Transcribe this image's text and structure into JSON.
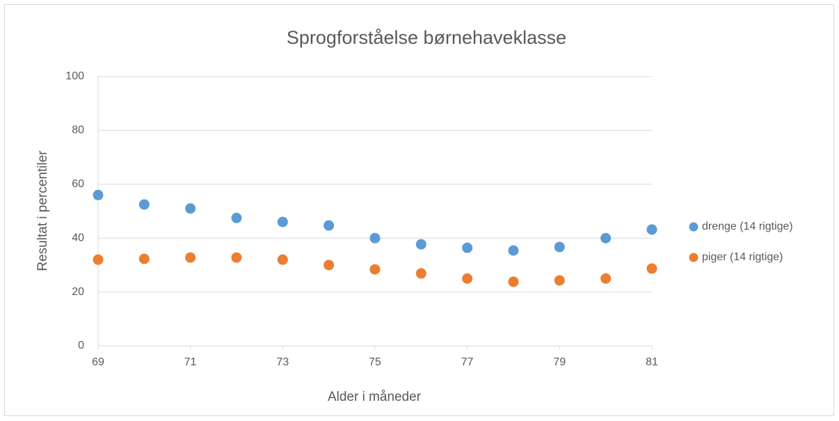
{
  "chart_data": {
    "type": "scatter",
    "title": "Sprogforståelse børnehaveklasse",
    "x_label": "Alder i måneder",
    "y_label": "Resultat i percentiler",
    "x": [
      69,
      70,
      71,
      72,
      73,
      74,
      75,
      76,
      77,
      78,
      79,
      80,
      81
    ],
    "series": [
      {
        "name": "drenge (14 rigtige)",
        "color": "#5b9bd5",
        "values": [
          56,
          52.5,
          51,
          47.5,
          46,
          44.7,
          40,
          37.7,
          36.4,
          35.4,
          36.7,
          40,
          43.2
        ]
      },
      {
        "name": "piger (14 rigtige)",
        "color": "#ed7d31",
        "values": [
          32,
          32.3,
          32.8,
          32.8,
          32,
          30,
          28.4,
          26.9,
          25,
          23.8,
          24.3,
          25,
          28.7
        ]
      }
    ],
    "xlim": [
      69,
      81
    ],
    "xticks": [
      69,
      71,
      73,
      75,
      77,
      79,
      81
    ],
    "ylim": [
      0,
      100
    ],
    "yticks": [
      0,
      20,
      40,
      60,
      80,
      100
    ],
    "grid": true,
    "legend": "right"
  }
}
